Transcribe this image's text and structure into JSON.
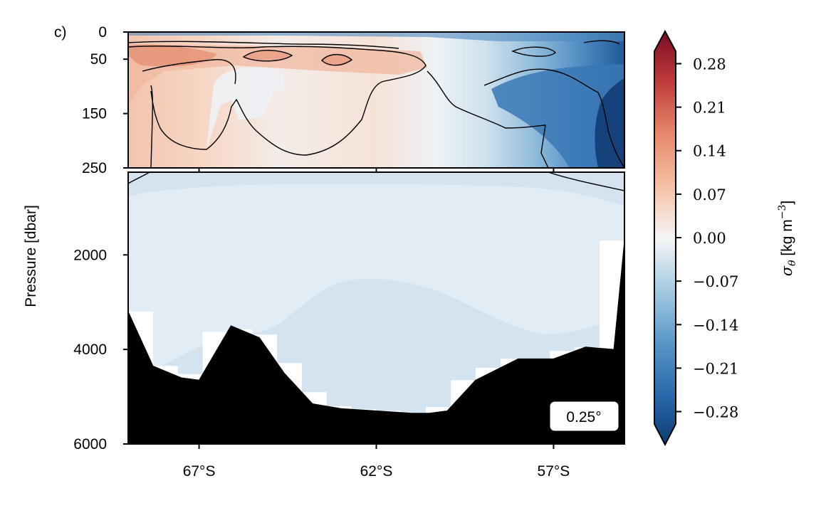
{
  "chart_data": {
    "type": "heatmap",
    "panel_label": "c)",
    "ylabel": "Pressure [dbar]",
    "xlabel": "",
    "resolution_badge": "0.25°",
    "x_ticks": [
      {
        "value": -67,
        "label": "67°S"
      },
      {
        "value": -62,
        "label": "62°S"
      },
      {
        "value": -57,
        "label": "57°S"
      }
    ],
    "xlim": [
      -69,
      -55
    ],
    "top_panel": {
      "ylim": [
        250,
        0
      ],
      "y_ticks": [
        {
          "value": 0,
          "label": "0"
        },
        {
          "value": 50,
          "label": "50"
        },
        {
          "value": 150,
          "label": "150"
        },
        {
          "value": 250,
          "label": "250"
        }
      ]
    },
    "bottom_panel": {
      "ylim": [
        6000,
        250
      ],
      "y_ticks": [
        {
          "value": 2000,
          "label": "2000"
        },
        {
          "value": 4000,
          "label": "4000"
        },
        {
          "value": 6000,
          "label": "6000"
        }
      ]
    },
    "colorbar": {
      "label": "σθ [kg m−3]",
      "cmap": "RdBu_r",
      "vmin": -0.3,
      "vmax": 0.3,
      "extend": "both",
      "ticks": [
        {
          "value": 0.28,
          "label": "0.28"
        },
        {
          "value": 0.21,
          "label": "0.21"
        },
        {
          "value": 0.14,
          "label": "0.14"
        },
        {
          "value": 0.07,
          "label": "0.07"
        },
        {
          "value": 0.0,
          "label": "0.00"
        },
        {
          "value": -0.07,
          "label": "−0.07"
        },
        {
          "value": -0.14,
          "label": "−0.14"
        },
        {
          "value": -0.21,
          "label": "−0.21"
        },
        {
          "value": -0.28,
          "label": "−0.28"
        }
      ]
    },
    "bathymetry": {
      "lat": [
        -69,
        -68.3,
        -67.5,
        -67,
        -66.1,
        -65.3,
        -64.6,
        -63.8,
        -63,
        -62,
        -61,
        -60.5,
        -60,
        -59.2,
        -58,
        -57,
        -56.1,
        -55.3,
        -55
      ],
      "depth": [
        3200,
        4350,
        4600,
        4650,
        3500,
        3750,
        4500,
        5150,
        5250,
        5300,
        5350,
        5350,
        5300,
        4650,
        4200,
        4200,
        3950,
        4000,
        1700
      ]
    }
  },
  "colors": {
    "axis": "#000000",
    "land": "#000000",
    "badge_bg": "#ffffff"
  }
}
